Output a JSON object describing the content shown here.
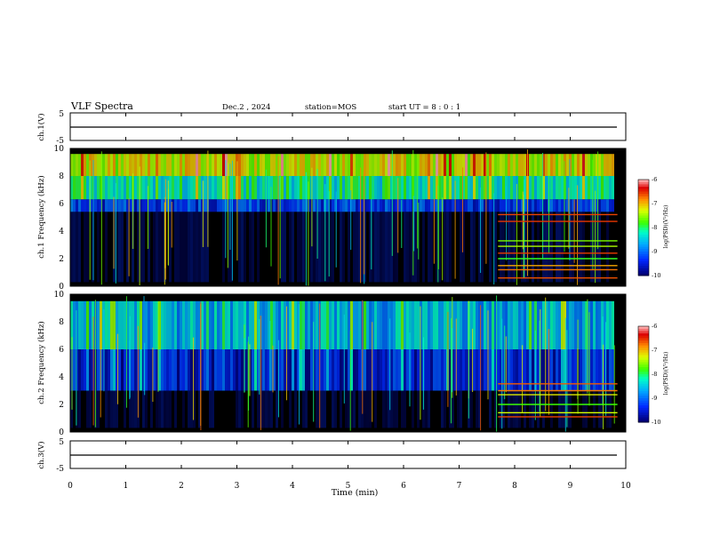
{
  "header": {
    "title": "VLF Spectra",
    "date": "Dec.2 , 2024",
    "station": "station=MOS",
    "start_ut": "start UT =   8 : 0  : 1"
  },
  "colorbar": {
    "label": "log(PSD)(V²/Hz)",
    "ticks": [
      "-6",
      "-7",
      "-8",
      "-9",
      "-10"
    ],
    "colors": [
      "#000000",
      "#0000c8",
      "#0050ff",
      "#00c8ff",
      "#00ffa0",
      "#40ff00",
      "#ffff00",
      "#ff8000",
      "#e00000",
      "#ff9090",
      "#ffffff"
    ]
  },
  "chart_data": [
    {
      "type": "line",
      "name": "ch1_voltage",
      "ylabel": "ch.1(V)",
      "ylim": [
        -5,
        5
      ],
      "yticks": [
        "5",
        "-5"
      ],
      "xlim": [
        0,
        10
      ],
      "baseline_value": 0
    },
    {
      "type": "heatmap",
      "name": "ch1_spectrogram",
      "ylabel": "ch.1 Frequency (kHz)",
      "ylim": [
        0,
        10
      ],
      "yticks": [
        "10",
        "8",
        "6",
        "4",
        "2",
        "0"
      ],
      "xlim": [
        0,
        10
      ],
      "zlim": [
        -10,
        -6
      ],
      "bands": [
        {
          "fmin": 8.0,
          "fmax": 9.6,
          "level": -7.3
        },
        {
          "fmin": 6.3,
          "fmax": 8.0,
          "level": -8.2
        },
        {
          "fmin": 5.4,
          "fmax": 6.3,
          "level": -9.3
        },
        {
          "fmin": 0.3,
          "fmax": 5.4,
          "level": -9.8
        }
      ],
      "change_time_min": 7.7,
      "tone_lines_khz": [
        0.6,
        1.2,
        1.5,
        2.0,
        2.4,
        2.9,
        3.3,
        4.7,
        5.2
      ]
    },
    {
      "type": "heatmap",
      "name": "ch2_spectrogram",
      "ylabel": "ch.2 Frequency (kHz)",
      "ylim": [
        0,
        10
      ],
      "yticks": [
        "10",
        "8",
        "6",
        "4",
        "2",
        "0"
      ],
      "xlim": [
        0,
        10
      ],
      "zlim": [
        -10,
        -6
      ],
      "bands": [
        {
          "fmin": 6.0,
          "fmax": 9.5,
          "level": -8.6
        },
        {
          "fmin": 3.0,
          "fmax": 6.0,
          "level": -9.5
        },
        {
          "fmin": 0.3,
          "fmax": 3.0,
          "level": -9.9
        }
      ],
      "change_time_min": 7.7,
      "tone_lines_khz": [
        1.1,
        1.4,
        2.0,
        2.7,
        3.0,
        3.5
      ]
    },
    {
      "type": "line",
      "name": "ch3_voltage",
      "ylabel": "ch.3(V)",
      "ylim": [
        -5,
        5
      ],
      "yticks": [
        "5",
        "-5"
      ],
      "xlim": [
        0,
        10
      ],
      "baseline_value": 0
    }
  ],
  "x_axis": {
    "label": "Time (min)",
    "ticks": [
      "0",
      "1",
      "2",
      "3",
      "4",
      "5",
      "6",
      "7",
      "8",
      "9",
      "10"
    ]
  }
}
